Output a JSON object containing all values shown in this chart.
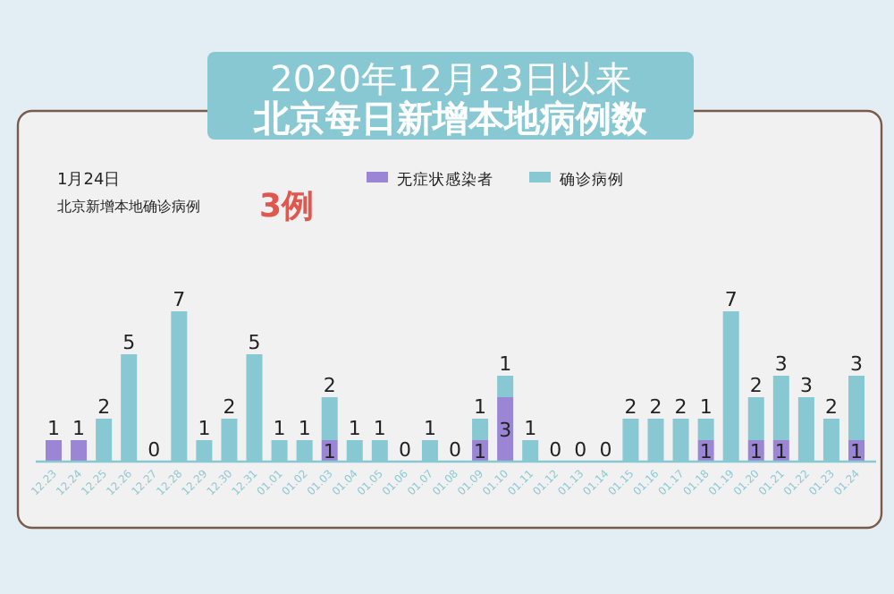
{
  "chart_data": {
    "type": "bar",
    "stacked": true,
    "title": "2020年12月23日以来",
    "subtitle": "北京每日新增本地病例数",
    "annotations": [
      "1月24日",
      "北京新增本地确诊病例",
      "3例"
    ],
    "legend": "top",
    "categories": [
      "12.23",
      "12.24",
      "12.25",
      "12.26",
      "12.27",
      "12.28",
      "12.29",
      "12.30",
      "12.31",
      "01.01",
      "01.02",
      "01.03",
      "01.04",
      "01.05",
      "01.06",
      "01.07",
      "01.08",
      "01.09",
      "01.10",
      "01.11",
      "01.12",
      "01.13",
      "01.14",
      "01.15",
      "01.16",
      "01.17",
      "01.18",
      "01.19",
      "01.20",
      "01.21",
      "01.22",
      "01.23",
      "01.24"
    ],
    "series": [
      {
        "name": "无症状感染者",
        "color": "#9b86d6",
        "values": [
          1,
          1,
          0,
          0,
          0,
          0,
          0,
          0,
          0,
          0,
          0,
          1,
          0,
          0,
          0,
          0,
          0,
          1,
          3,
          0,
          0,
          0,
          0,
          0,
          0,
          0,
          1,
          0,
          1,
          1,
          0,
          0,
          1
        ],
        "value_labels": [
          "1",
          "1",
          null,
          null,
          null,
          null,
          null,
          null,
          null,
          null,
          null,
          "1",
          null,
          null,
          null,
          null,
          null,
          "1",
          "3",
          null,
          null,
          null,
          null,
          null,
          null,
          null,
          "1",
          null,
          "1",
          "1",
          null,
          null,
          "1"
        ]
      },
      {
        "name": "确诊病例",
        "color": "#88c8d3",
        "values": [
          0,
          0,
          2,
          5,
          0,
          7,
          1,
          2,
          5,
          1,
          1,
          2,
          1,
          1,
          0,
          1,
          0,
          1,
          1,
          1,
          0,
          0,
          0,
          2,
          2,
          2,
          1,
          7,
          2,
          3,
          3,
          2,
          3
        ],
        "value_labels": [
          null,
          null,
          "2",
          "5",
          "0",
          "7",
          "1",
          "2",
          "5",
          "1",
          "1",
          "2",
          "1",
          "1",
          "0",
          "1",
          "0",
          "1",
          "1",
          "1",
          "0",
          "0",
          "0",
          "2",
          "2",
          "2",
          "1",
          "7",
          "2",
          "3",
          "3",
          "2",
          "3"
        ]
      }
    ]
  }
}
